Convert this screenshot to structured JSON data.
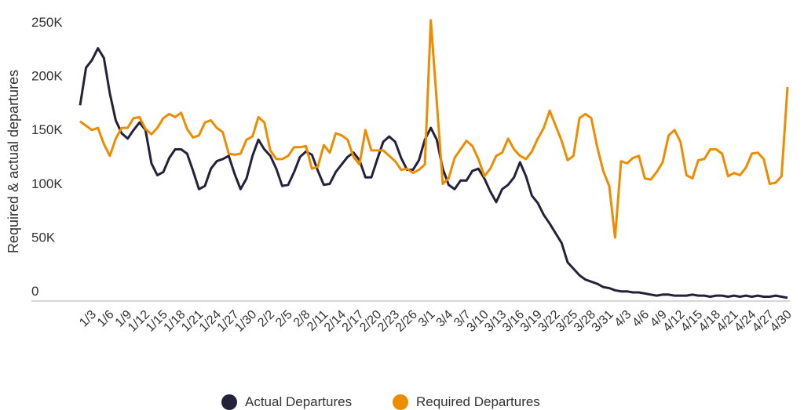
{
  "chart_data": {
    "type": "line",
    "ylabel": "Required & actual departures",
    "xlabel": "",
    "ylim": [
      0,
      250000
    ],
    "yticks": [
      0,
      50000,
      100000,
      150000,
      200000,
      250000
    ],
    "ytick_labels": [
      "0",
      "50K",
      "100K",
      "150K",
      "200K",
      "250K"
    ],
    "grid": false,
    "legend_position": "bottom",
    "date_range": [
      "1/1",
      "4/30"
    ],
    "xtick_labels": [
      "1/3",
      "1/6",
      "1/9",
      "1/12",
      "1/15",
      "1/18",
      "1/21",
      "1/24",
      "1/27",
      "1/30",
      "2/2",
      "2/5",
      "2/8",
      "2/11",
      "2/14",
      "2/17",
      "2/20",
      "2/23",
      "2/26",
      "3/1",
      "3/4",
      "3/7",
      "3/10",
      "3/13",
      "3/16",
      "3/19",
      "3/22",
      "3/25",
      "3/28",
      "3/31",
      "4/3",
      "4/6",
      "4/9",
      "4/12",
      "4/15",
      "4/18",
      "4/21",
      "4/24",
      "4/27",
      "4/30"
    ],
    "series": [
      {
        "name": "Actual Departures",
        "color": "#24213a",
        "values_thousands": [
          182,
          217,
          224,
          235,
          226,
          193,
          168,
          156,
          151,
          159,
          166,
          159,
          128,
          117,
          120,
          133,
          141,
          141,
          137,
          121,
          104,
          107,
          123,
          130,
          132,
          135,
          118,
          104,
          114,
          135,
          150,
          141,
          135,
          123,
          107,
          108,
          120,
          134,
          139,
          136,
          121,
          108,
          109,
          120,
          127,
          134,
          138,
          131,
          115,
          115,
          132,
          148,
          153,
          148,
          133,
          122,
          122,
          131,
          150,
          161,
          150,
          123,
          108,
          104,
          112,
          112,
          121,
          123,
          114,
          102,
          92,
          104,
          108,
          115,
          129,
          116,
          98,
          91,
          80,
          72,
          63,
          54,
          36,
          30,
          24,
          20,
          18,
          16,
          13,
          12,
          10,
          9,
          9,
          8,
          8,
          7,
          6,
          5,
          6,
          6,
          5,
          5,
          5,
          6,
          5,
          5,
          4,
          5,
          5,
          4,
          5,
          4,
          5,
          4,
          5,
          4,
          4,
          5,
          4,
          3
        ]
      },
      {
        "name": "Required Departures",
        "color": "#ee8c00",
        "values_thousands": [
          167,
          163,
          159,
          161,
          146,
          135,
          151,
          161,
          161,
          170,
          171,
          160,
          155,
          161,
          170,
          174,
          171,
          175,
          160,
          152,
          154,
          166,
          168,
          161,
          157,
          137,
          136,
          137,
          150,
          153,
          171,
          166,
          140,
          132,
          132,
          135,
          143,
          143,
          144,
          123,
          125,
          145,
          138,
          156,
          154,
          150,
          134,
          127,
          159,
          140,
          140,
          140,
          135,
          130,
          122,
          123,
          119,
          122,
          127,
          261,
          185,
          109,
          114,
          133,
          141,
          149,
          144,
          132,
          116,
          123,
          135,
          138,
          151,
          141,
          135,
          132,
          139,
          151,
          161,
          177,
          163,
          149,
          131,
          135,
          170,
          174,
          170,
          143,
          121,
          107,
          59,
          130,
          128,
          133,
          135,
          114,
          113,
          120,
          129,
          154,
          159,
          148,
          117,
          114,
          131,
          132,
          141,
          141,
          137,
          116,
          119,
          117,
          124,
          137,
          138,
          132,
          109,
          110,
          116,
          199
        ]
      }
    ]
  }
}
